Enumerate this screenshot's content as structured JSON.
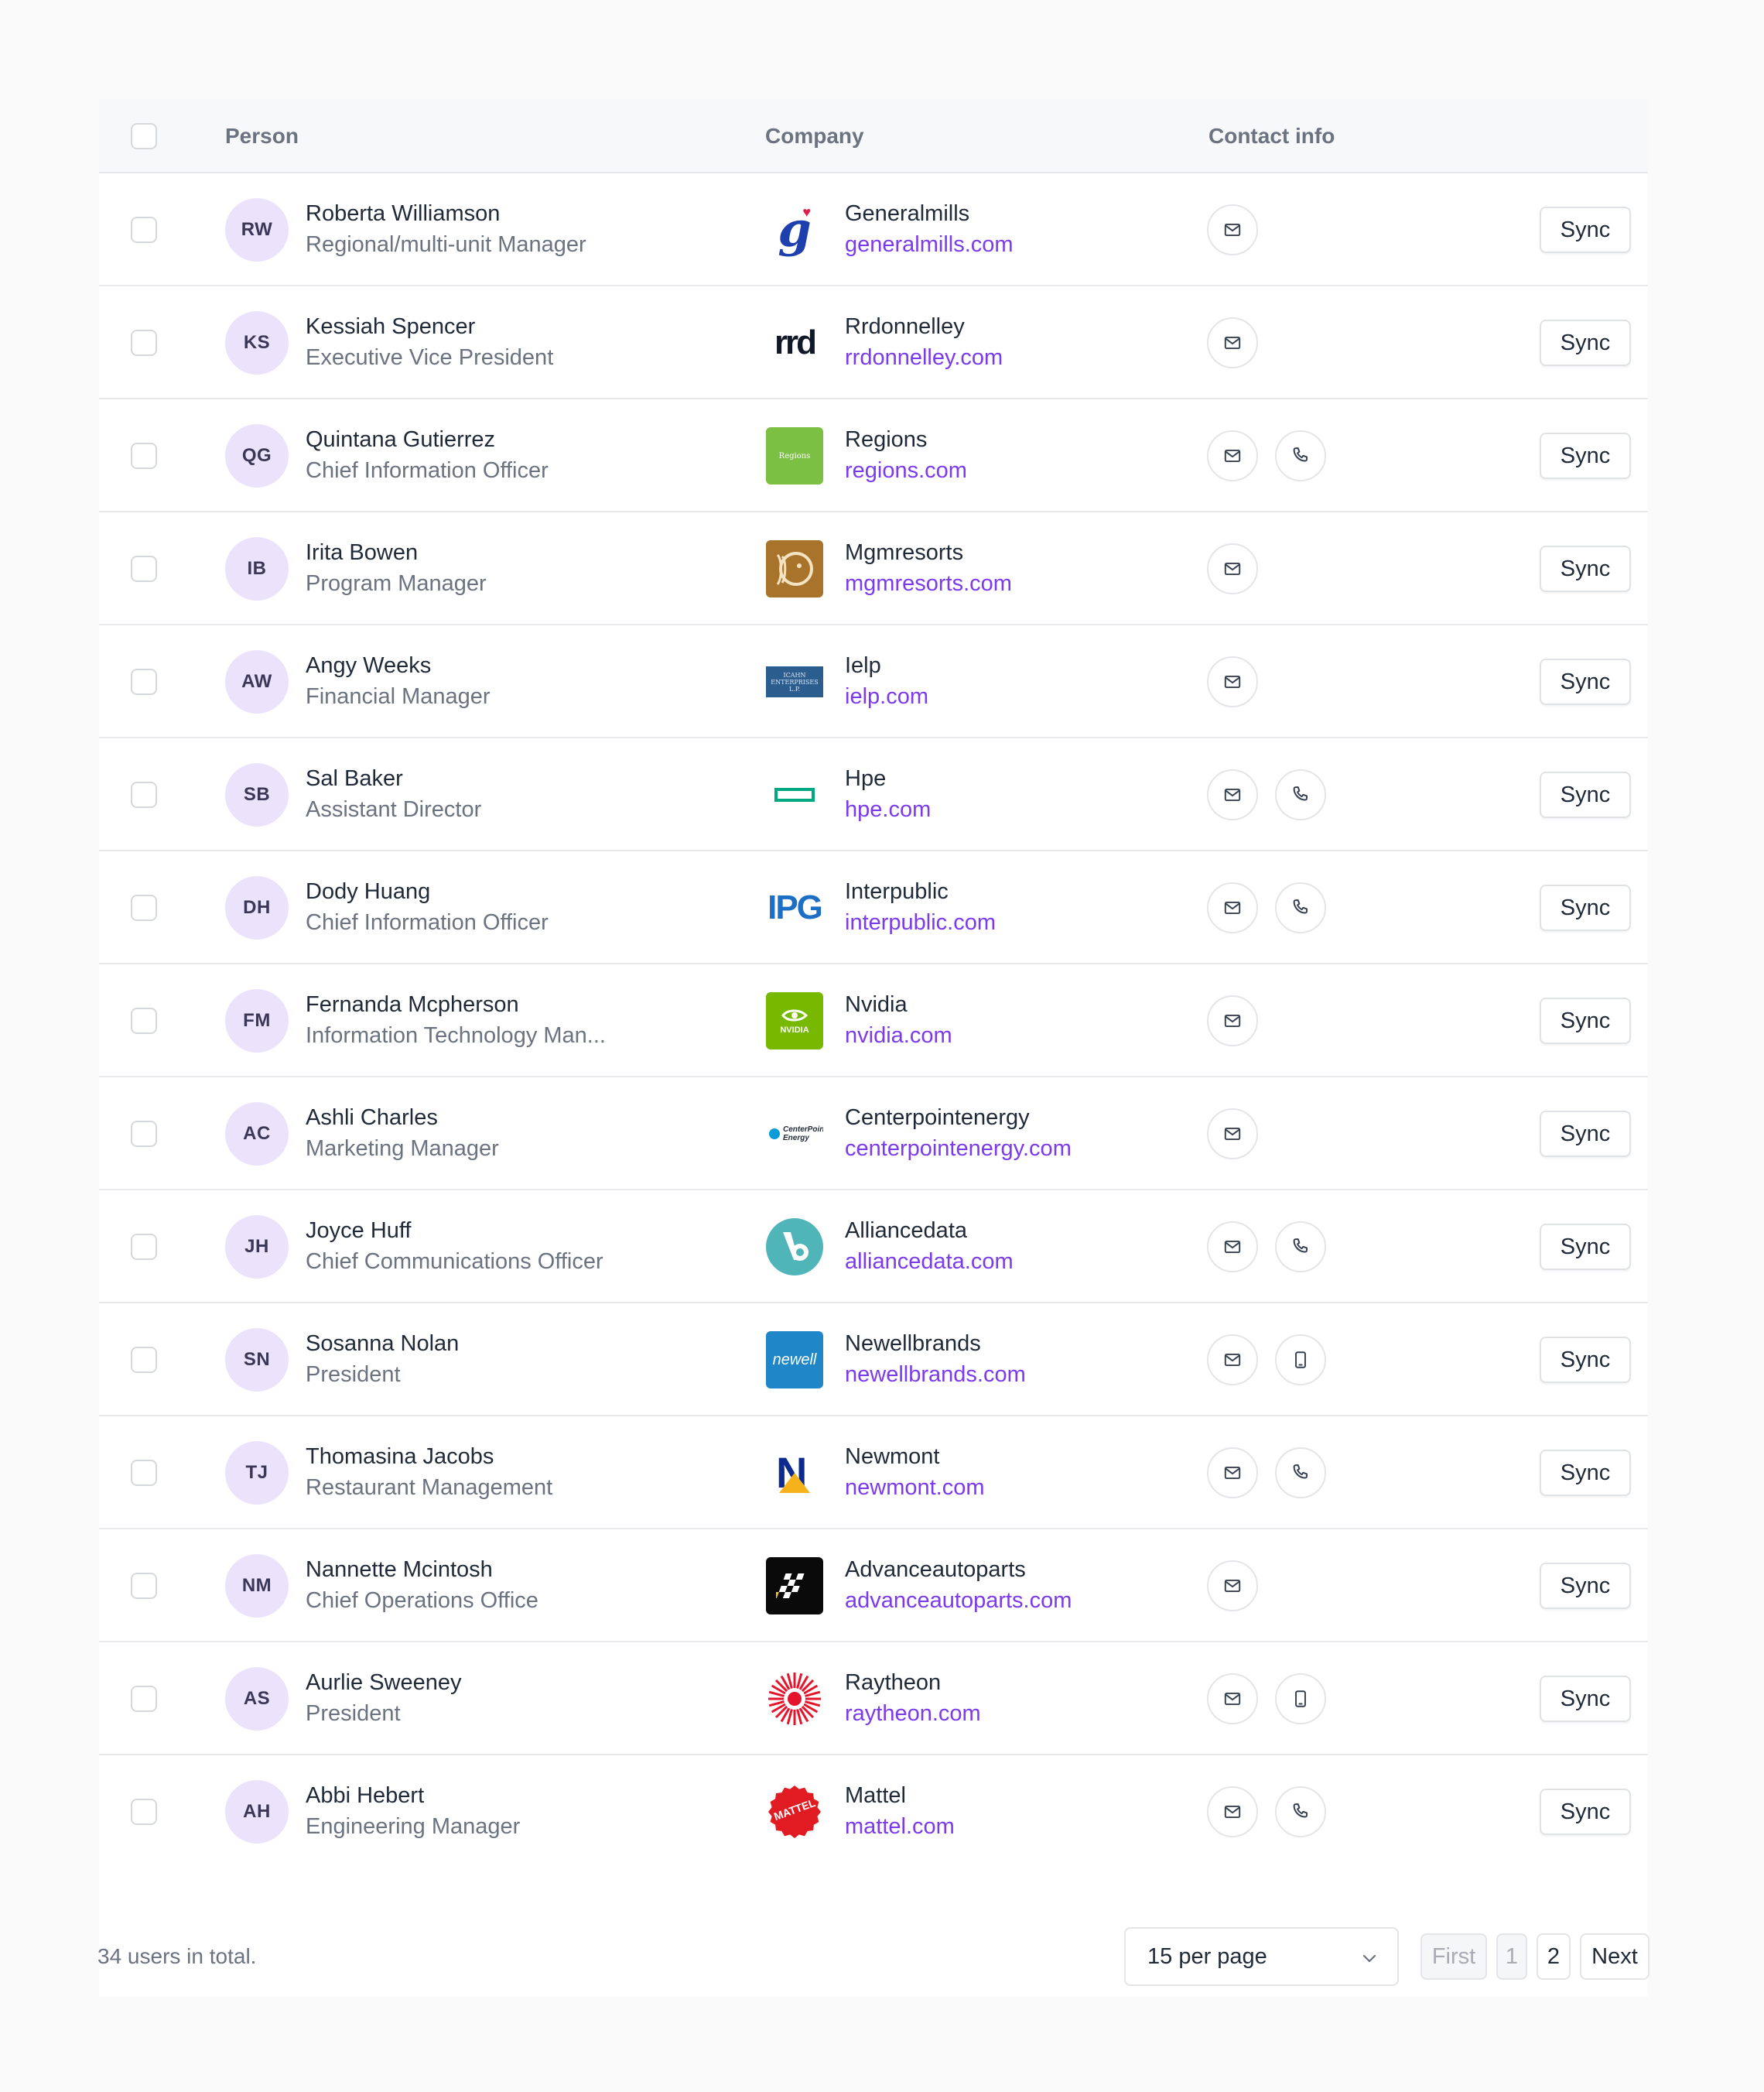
{
  "header": {
    "person": "Person",
    "company": "Company",
    "contact": "Contact info"
  },
  "sync_label": "Sync",
  "rows": [
    {
      "initials": "RW",
      "name": "Roberta Williamson",
      "title": "Regional/multi-unit Manager",
      "company": "Generalmills",
      "domain": "generalmills.com",
      "logo": "generalmills-logo",
      "second": ""
    },
    {
      "initials": "KS",
      "name": "Kessiah Spencer",
      "title": "Executive Vice President",
      "company": "Rrdonnelley",
      "domain": "rrdonnelley.com",
      "logo": "rrdonnelley-logo",
      "logo_text": "rrd",
      "second": ""
    },
    {
      "initials": "QG",
      "name": "Quintana Gutierrez",
      "title": "Chief Information Officer",
      "company": "Regions",
      "domain": "regions.com",
      "logo": "regions-logo",
      "logo_text": "Regions",
      "second": "phone"
    },
    {
      "initials": "IB",
      "name": "Irita Bowen",
      "title": "Program Manager",
      "company": "Mgmresorts",
      "domain": "mgmresorts.com",
      "logo": "mgmresorts-logo",
      "second": ""
    },
    {
      "initials": "AW",
      "name": "Angy Weeks",
      "title": "Financial Manager",
      "company": "Ielp",
      "domain": "ielp.com",
      "logo": "ielp-logo",
      "logo_text": "ICAHN ENTERPRISES L.P.",
      "second": ""
    },
    {
      "initials": "SB",
      "name": "Sal Baker",
      "title": "Assistant Director",
      "company": "Hpe",
      "domain": "hpe.com",
      "logo": "hpe-logo",
      "second": "phone"
    },
    {
      "initials": "DH",
      "name": "Dody Huang",
      "title": "Chief Information Officer",
      "company": "Interpublic",
      "domain": "interpublic.com",
      "logo": "interpublic-logo",
      "logo_text": "IPG",
      "second": "phone"
    },
    {
      "initials": "FM",
      "name": "Fernanda Mcpherson",
      "title": "Information Technology Man...",
      "company": "Nvidia",
      "domain": "nvidia.com",
      "logo": "nvidia-logo",
      "logo_text": "NVIDIA",
      "second": ""
    },
    {
      "initials": "AC",
      "name": "Ashli Charles",
      "title": "Marketing Manager",
      "company": "Centerpointenergy",
      "domain": "centerpointenergy.com",
      "logo": "centerpointenergy-logo",
      "logo_text": "CenterPoint Energy",
      "second": ""
    },
    {
      "initials": "JH",
      "name": "Joyce Huff",
      "title": "Chief Communications Officer",
      "company": "Alliancedata",
      "domain": "alliancedata.com",
      "logo": "alliancedata-logo",
      "second": "phone"
    },
    {
      "initials": "SN",
      "name": "Sosanna Nolan",
      "title": "President",
      "company": "Newellbrands",
      "domain": "newellbrands.com",
      "logo": "newellbrands-logo",
      "logo_text": "newell",
      "second": "mobile"
    },
    {
      "initials": "TJ",
      "name": "Thomasina Jacobs",
      "title": "Restaurant Management",
      "company": "Newmont",
      "domain": "newmont.com",
      "logo": "newmont-logo",
      "logo_text": "N",
      "second": "phone"
    },
    {
      "initials": "NM",
      "name": "Nannette Mcintosh",
      "title": "Chief Operations Office",
      "company": "Advanceautoparts",
      "domain": "advanceautoparts.com",
      "logo": "advanceautoparts-logo",
      "second": ""
    },
    {
      "initials": "AS",
      "name": "Aurlie Sweeney",
      "title": "President",
      "company": "Raytheon",
      "domain": "raytheon.com",
      "logo": "raytheon-logo",
      "second": "mobile"
    },
    {
      "initials": "AH",
      "name": "Abbi Hebert",
      "title": "Engineering Manager",
      "company": "Mattel",
      "domain": "mattel.com",
      "logo": "mattel-logo",
      "logo_text": "MATTEL",
      "second": "phone"
    }
  ],
  "footer": {
    "total": "34 users in total.",
    "per_page": "15 per page",
    "first": "First",
    "page1": "1",
    "page2": "2",
    "next": "Next"
  }
}
